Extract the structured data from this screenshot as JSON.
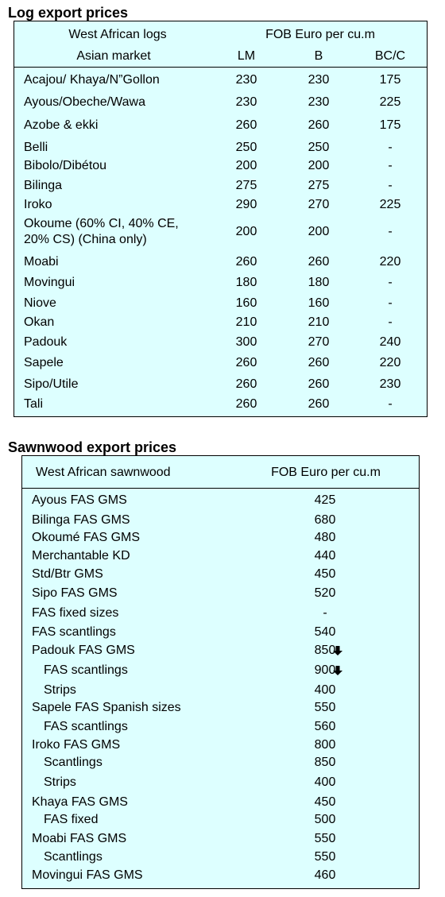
{
  "log": {
    "title": "Log export prices",
    "header": {
      "col1_line1": "West African logs",
      "col1_line2": "Asian market",
      "price_header": "FOB Euro per cu.m",
      "lm": "LM",
      "b": "B",
      "bcc": "BC/C"
    },
    "rows": [
      {
        "name": "Acajou/ Khaya/N”Gollon",
        "lm": "230",
        "b": "230",
        "bcc": "175"
      },
      {
        "name": "Ayous/Obeche/Wawa",
        "lm": "230",
        "b": "230",
        "bcc": "225"
      },
      {
        "name": "Azobe & ekki",
        "lm": "260",
        "b": "260",
        "bcc": "175"
      },
      {
        "name": "Belli",
        "lm": "250",
        "b": "250",
        "bcc": "-"
      },
      {
        "name": "Bibolo/Dibétou",
        "lm": "200",
        "b": "200",
        "bcc": "-"
      },
      {
        "name": "Bilinga",
        "lm": "275",
        "b": "275",
        "bcc": "-"
      },
      {
        "name": "Iroko",
        "lm": "290",
        "b": "270",
        "bcc": "225"
      },
      {
        "name": "Okoume (60% CI, 40% CE,",
        "name2": "20% CS) (China only)",
        "lm": "200",
        "b": "200",
        "bcc": "-"
      },
      {
        "name": "Moabi",
        "lm": "260",
        "b": "260",
        "bcc": "220"
      },
      {
        "name": "Movingui",
        "lm": "180",
        "b": "180",
        "bcc": "-"
      },
      {
        "name": "Niove",
        "lm": "160",
        "b": "160",
        "bcc": "-"
      },
      {
        "name": "Okan",
        "lm": "210",
        "b": "210",
        "bcc": "-"
      },
      {
        "name": "Padouk",
        "lm": "300",
        "b": "270",
        "bcc": "240"
      },
      {
        "name": "Sapele",
        "lm": "260",
        "b": "260",
        "bcc": "220"
      },
      {
        "name": "Sipo/Utile",
        "lm": "260",
        "b": "260",
        "bcc": "230"
      },
      {
        "name": "Tali",
        "lm": "260",
        "b": "260",
        "bcc": "-"
      }
    ]
  },
  "sawn": {
    "title": "Sawnwood export prices",
    "header": {
      "col1": "West African sawnwood",
      "price_header": "FOB Euro per cu.m"
    },
    "rows": [
      {
        "name": "Ayous FAS GMS",
        "price": "425",
        "indent": false,
        "down": false
      },
      {
        "name": "Bilinga FAS GMS",
        "price": "680",
        "indent": false,
        "down": false
      },
      {
        "name": "Okoumé FAS GMS",
        "price": "480",
        "indent": false,
        "down": false
      },
      {
        "name": "Merchantable KD",
        "price": "440",
        "indent": false,
        "down": false
      },
      {
        "name": "Std/Btr GMS",
        "price": "450",
        "indent": false,
        "down": false
      },
      {
        "name": "Sipo FAS GMS",
        "price": "520",
        "indent": false,
        "down": false
      },
      {
        "name": "FAS fixed sizes",
        "price": "-",
        "indent": false,
        "down": false
      },
      {
        "name": "FAS scantlings",
        "price": "540",
        "indent": false,
        "down": false
      },
      {
        "name": "Padouk FAS GMS",
        "price": "850",
        "indent": false,
        "down": true
      },
      {
        "name": "FAS scantlings",
        "price": "900",
        "indent": true,
        "down": true
      },
      {
        "name": "Strips",
        "price": "400",
        "indent": true,
        "down": false
      },
      {
        "name": "Sapele FAS Spanish sizes",
        "price": "550",
        "indent": false,
        "down": false
      },
      {
        "name": "FAS scantlings",
        "price": "560",
        "indent": true,
        "down": false
      },
      {
        "name": "Iroko FAS GMS",
        "price": "800",
        "indent": false,
        "down": false
      },
      {
        "name": "Scantlings",
        "price": "850",
        "indent": true,
        "down": false
      },
      {
        "name": "Strips",
        "price": "400",
        "indent": true,
        "down": false
      },
      {
        "name": "Khaya FAS GMS",
        "price": "450",
        "indent": false,
        "down": false
      },
      {
        "name": "FAS fixed",
        "price": "500",
        "indent": true,
        "down": false
      },
      {
        "name": "Moabi FAS GMS",
        "price": "550",
        "indent": false,
        "down": false
      },
      {
        "name": "Scantlings",
        "price": "550",
        "indent": true,
        "down": false
      },
      {
        "name": "Movingui FAS GMS",
        "price": "460",
        "indent": false,
        "down": false
      }
    ],
    "arrow_icon": "down-arrow-icon"
  }
}
